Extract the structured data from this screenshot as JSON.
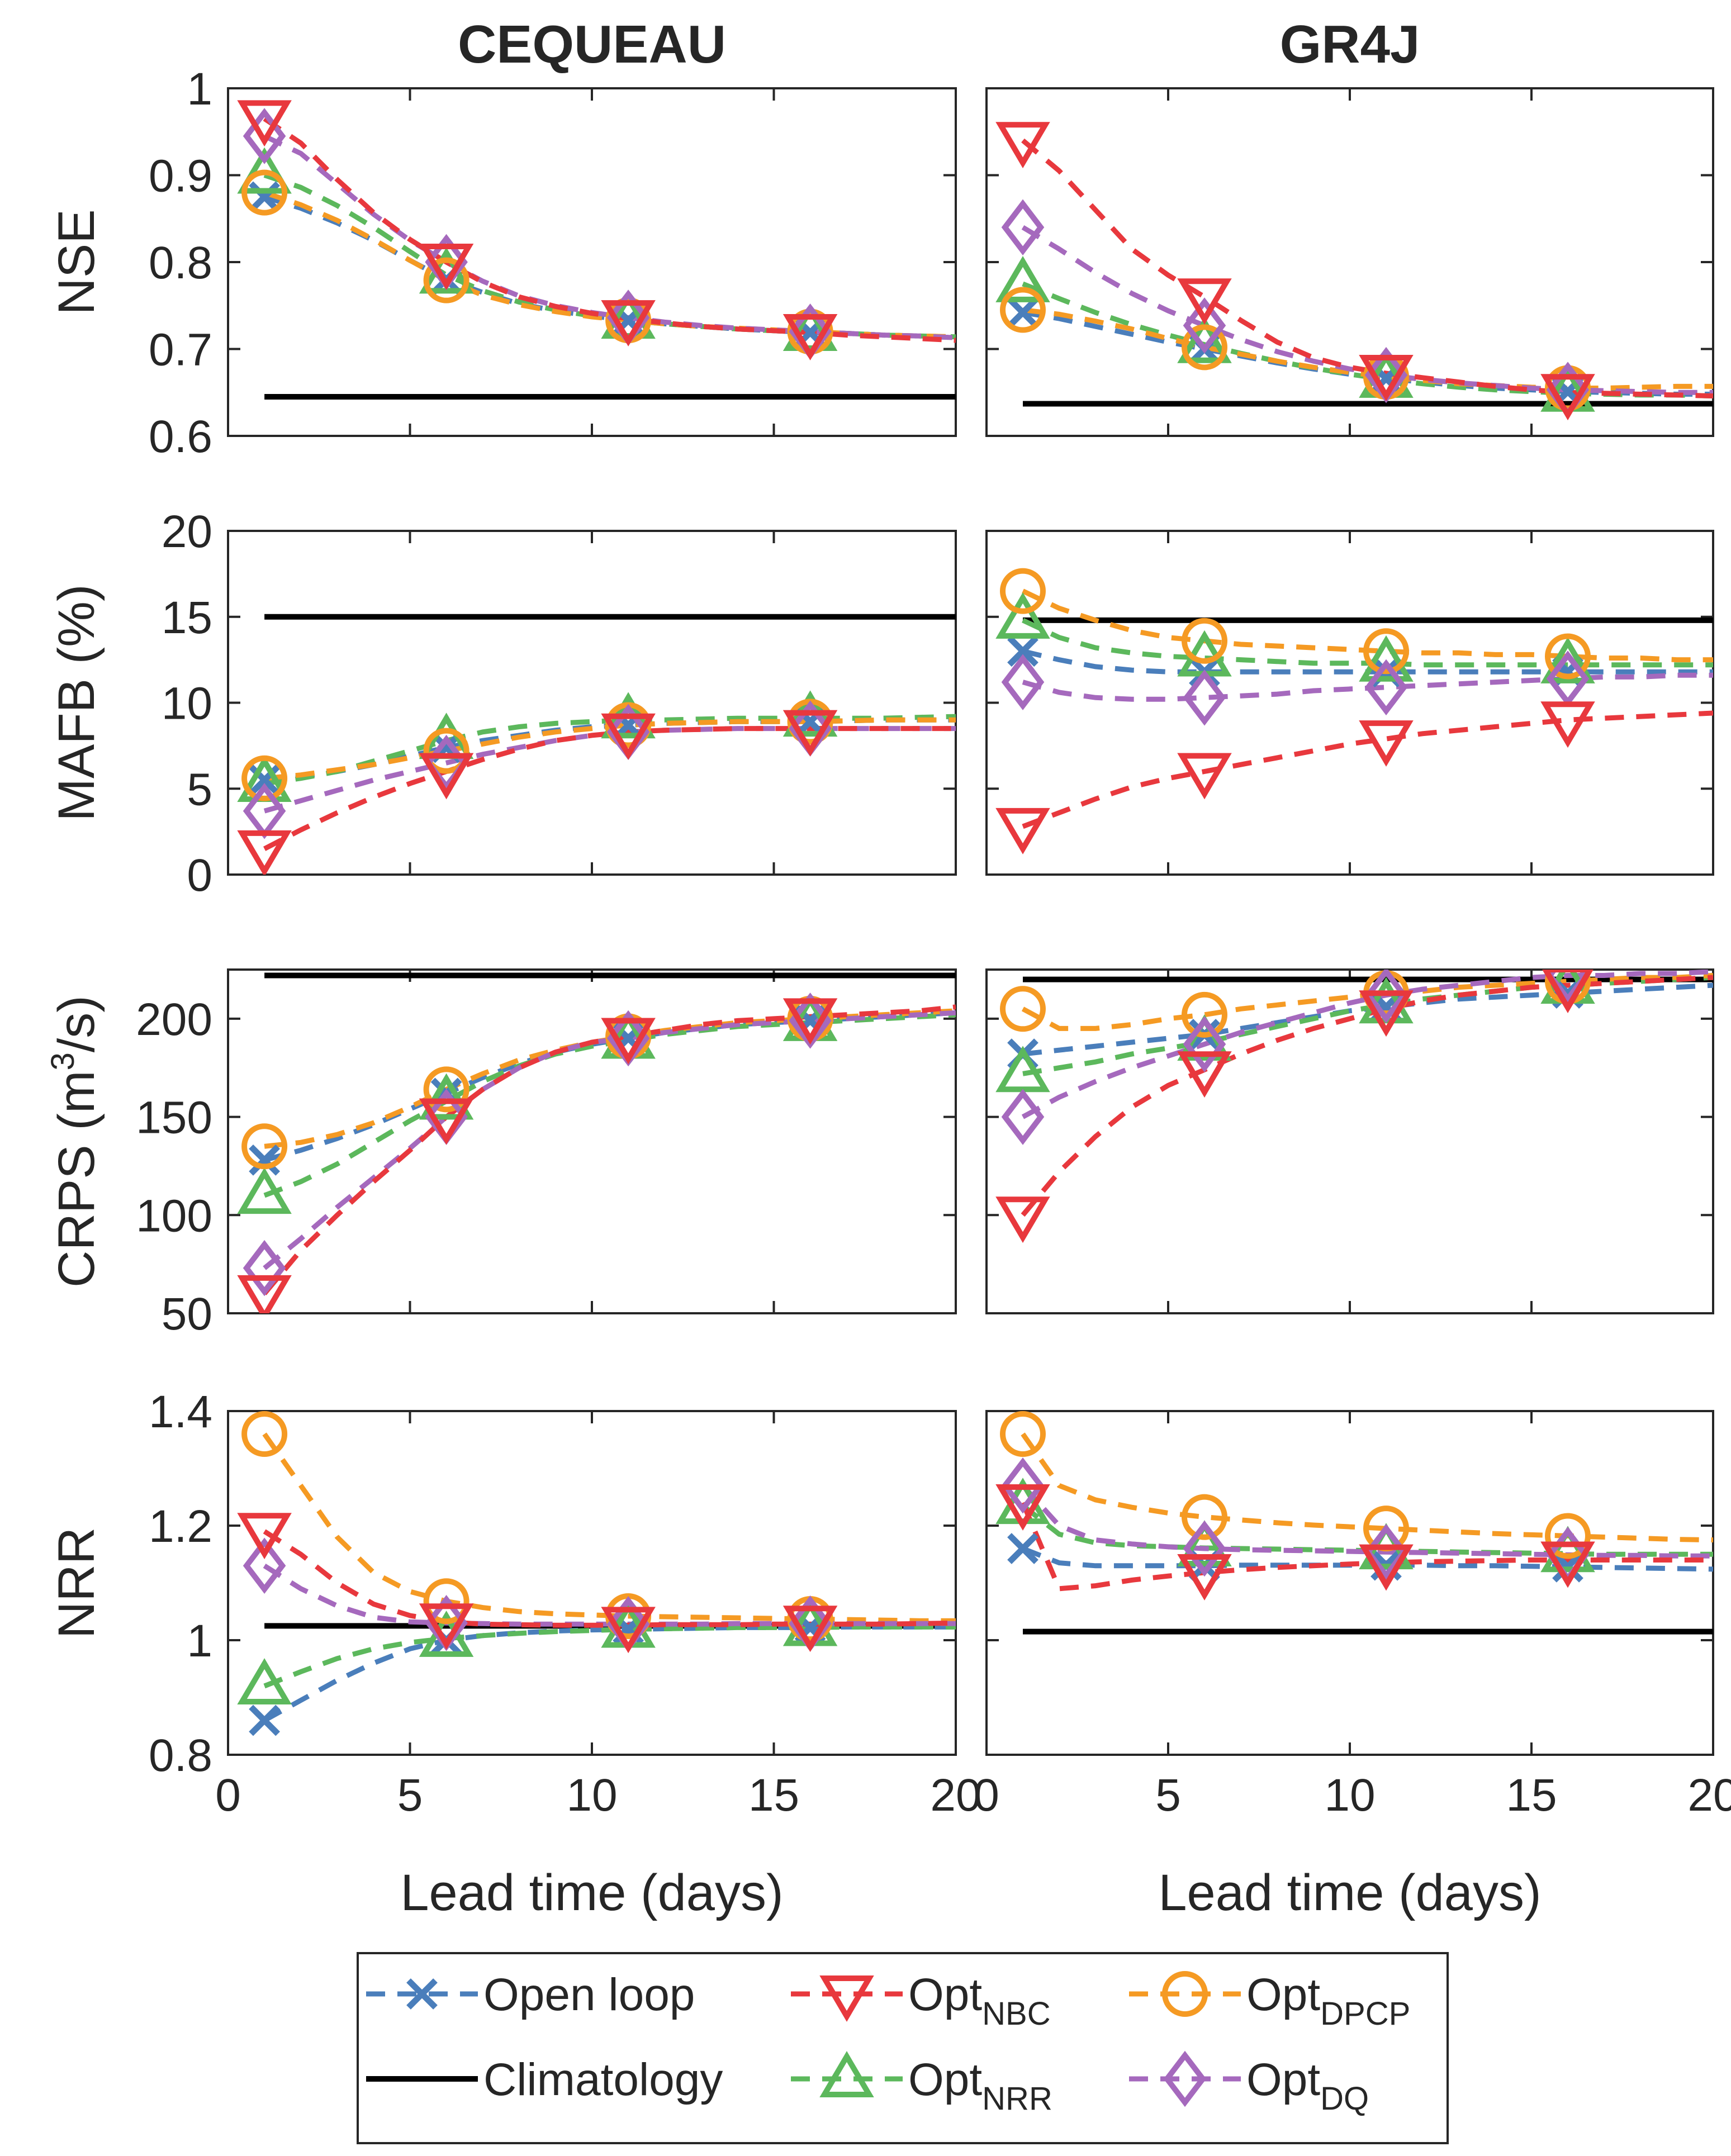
{
  "chart_data": {
    "type": "line",
    "x_label": "Lead time (days)",
    "x_ticks": [
      "0",
      "5",
      "10",
      "15",
      "20"
    ],
    "x_range": [
      0,
      20
    ],
    "columns": [
      "CEQUEAU",
      "GR4J"
    ],
    "metrics": [
      {
        "key": "nse",
        "ylabel": "NSE",
        "ylim": [
          0.6,
          1.0
        ],
        "yticks": [
          "0.6",
          "0.7",
          "0.8",
          "0.9",
          "1"
        ],
        "ytick_values": [
          0.6,
          0.7,
          0.8,
          0.9,
          1.0
        ]
      },
      {
        "key": "mafb",
        "ylabel": "MAFB (%)",
        "ylim": [
          0,
          20
        ],
        "yticks": [
          "0",
          "5",
          "10",
          "15",
          "20"
        ],
        "ytick_values": [
          0,
          5,
          10,
          15,
          20
        ]
      },
      {
        "key": "crps",
        "ylabel_main": "CRPS (m",
        "ylabel_sup": "3",
        "ylabel_end": "/s)",
        "ylim": [
          50,
          225
        ],
        "yticks": [
          "50",
          "100",
          "150",
          "200"
        ],
        "ytick_values": [
          50,
          100,
          150,
          200
        ]
      },
      {
        "key": "nrr",
        "ylabel": "NRR",
        "ylim": [
          0.8,
          1.4
        ],
        "yticks": [
          "0.8",
          "1",
          "1.2",
          "1.4"
        ],
        "ytick_values": [
          0.8,
          1.0,
          1.2,
          1.4
        ]
      }
    ],
    "marker_x": [
      1,
      6,
      11,
      16
    ],
    "x": [
      1,
      2,
      3,
      4,
      5,
      6,
      7,
      8,
      9,
      10,
      11,
      12,
      13,
      14,
      15,
      16,
      17,
      18,
      19,
      20
    ],
    "series_styles": [
      {
        "key": "open_loop",
        "name": "Open loop",
        "color": "#4a7ebb",
        "marker": "x"
      },
      {
        "key": "opt_nbc",
        "name": "Opt",
        "sub": "NBC",
        "color": "#e8383d",
        "marker": "triangle-down"
      },
      {
        "key": "opt_dpcp",
        "name": "Opt",
        "sub": "DPCP",
        "color": "#f59a23",
        "marker": "circle"
      },
      {
        "key": "climatology",
        "name": "Climatology",
        "color": "#000000",
        "marker": "none"
      },
      {
        "key": "opt_nrr",
        "name": "Opt",
        "sub": "NRR",
        "color": "#5cb85c",
        "marker": "triangle-up"
      },
      {
        "key": "opt_dq",
        "name": "Opt",
        "sub": "DQ",
        "color": "#a569bd",
        "marker": "diamond"
      }
    ],
    "data": {
      "CEQUEAU": {
        "nse": {
          "climatology": 0.645,
          "open_loop": [
            0.875,
            0.862,
            0.845,
            0.825,
            0.802,
            0.78,
            0.765,
            0.752,
            0.744,
            0.738,
            0.733,
            0.729,
            0.726,
            0.723,
            0.721,
            0.719,
            0.718,
            0.716,
            0.715,
            0.713
          ],
          "opt_nbc": [
            0.965,
            0.937,
            0.895,
            0.857,
            0.826,
            0.8,
            0.777,
            0.76,
            0.749,
            0.741,
            0.735,
            0.73,
            0.726,
            0.723,
            0.721,
            0.719,
            0.716,
            0.714,
            0.712,
            0.71
          ],
          "opt_dpcp": [
            0.88,
            0.866,
            0.848,
            0.826,
            0.802,
            0.779,
            0.762,
            0.751,
            0.743,
            0.737,
            0.733,
            0.729,
            0.726,
            0.724,
            0.722,
            0.72,
            0.718,
            0.716,
            0.715,
            0.714
          ],
          "opt_nrr": [
            0.9,
            0.886,
            0.865,
            0.84,
            0.812,
            0.785,
            0.767,
            0.754,
            0.745,
            0.738,
            0.733,
            0.729,
            0.726,
            0.723,
            0.721,
            0.719,
            0.718,
            0.716,
            0.715,
            0.714
          ],
          "opt_dq": [
            0.945,
            0.925,
            0.89,
            0.855,
            0.825,
            0.8,
            0.778,
            0.761,
            0.75,
            0.742,
            0.736,
            0.731,
            0.727,
            0.724,
            0.722,
            0.72,
            0.718,
            0.716,
            0.715,
            0.713
          ]
        },
        "mafb": {
          "climatology": 15.0,
          "open_loop": [
            5.5,
            5.7,
            6.0,
            6.4,
            6.9,
            7.4,
            7.8,
            8.1,
            8.4,
            8.6,
            8.7,
            8.8,
            8.85,
            8.9,
            8.9,
            8.9,
            8.95,
            9.0,
            9.0,
            9.0
          ],
          "opt_nbc": [
            1.5,
            2.6,
            3.6,
            4.5,
            5.3,
            6.0,
            6.7,
            7.3,
            7.8,
            8.1,
            8.3,
            8.4,
            8.45,
            8.5,
            8.5,
            8.5,
            8.5,
            8.5,
            8.5,
            8.5
          ],
          "opt_dpcp": [
            5.6,
            5.8,
            6.1,
            6.4,
            6.8,
            7.2,
            7.6,
            8.0,
            8.3,
            8.5,
            8.7,
            8.8,
            8.85,
            8.9,
            8.9,
            8.9,
            8.95,
            9.0,
            9.0,
            9.0
          ],
          "opt_nrr": [
            5.3,
            5.6,
            6.0,
            6.6,
            7.2,
            7.8,
            8.3,
            8.6,
            8.8,
            8.9,
            9.0,
            9.0,
            9.05,
            9.1,
            9.1,
            9.1,
            9.1,
            9.1,
            9.15,
            9.2
          ],
          "opt_dq": [
            3.7,
            4.3,
            4.9,
            5.5,
            6.0,
            6.5,
            7.0,
            7.4,
            7.8,
            8.1,
            8.3,
            8.4,
            8.45,
            8.5,
            8.5,
            8.5,
            8.5,
            8.5,
            8.5,
            8.5
          ]
        },
        "crps": {
          "climatology": 222,
          "open_loop": [
            128,
            133,
            139,
            146,
            154,
            162,
            170,
            177,
            183,
            187,
            190,
            193,
            195,
            197,
            198,
            199,
            200,
            201,
            202,
            203
          ],
          "opt_nbc": [
            60,
            82,
            100,
            117,
            133,
            150,
            164,
            175,
            183,
            188,
            191,
            194,
            197,
            199,
            200,
            201,
            202,
            203,
            204,
            206
          ],
          "opt_dpcp": [
            135,
            137,
            141,
            147,
            155,
            164,
            172,
            179,
            184,
            188,
            191,
            194,
            196,
            198,
            199,
            200,
            201,
            202,
            203,
            204
          ],
          "opt_nrr": [
            110,
            117,
            126,
            137,
            148,
            158,
            168,
            176,
            182,
            186,
            189,
            192,
            194,
            196,
            197,
            198,
            199,
            200,
            201,
            202
          ],
          "opt_dq": [
            73,
            88,
            104,
            119,
            134,
            150,
            164,
            175,
            183,
            188,
            190,
            193,
            195,
            197,
            198,
            199,
            200,
            201,
            202,
            203
          ]
        },
        "nrr": {
          "climatology": 1.025,
          "open_loop": [
            0.86,
            0.895,
            0.93,
            0.96,
            0.985,
            1.0,
            1.008,
            1.013,
            1.016,
            1.018,
            1.019,
            1.02,
            1.021,
            1.022,
            1.022,
            1.022,
            1.023,
            1.023,
            1.023,
            1.023
          ],
          "opt_nbc": [
            1.19,
            1.15,
            1.1,
            1.063,
            1.043,
            1.032,
            1.028,
            1.027,
            1.026,
            1.026,
            1.026,
            1.027,
            1.027,
            1.027,
            1.028,
            1.028,
            1.028,
            1.028,
            1.029,
            1.03
          ],
          "opt_dpcp": [
            1.36,
            1.27,
            1.18,
            1.118,
            1.085,
            1.068,
            1.057,
            1.05,
            1.046,
            1.044,
            1.042,
            1.041,
            1.04,
            1.039,
            1.038,
            1.037,
            1.036,
            1.035,
            1.034,
            1.034
          ],
          "opt_nrr": [
            0.92,
            0.945,
            0.968,
            0.985,
            0.996,
            1.003,
            1.008,
            1.012,
            1.015,
            1.017,
            1.019,
            1.02,
            1.021,
            1.022,
            1.022,
            1.022,
            1.023,
            1.023,
            1.023,
            1.023
          ],
          "opt_dq": [
            1.13,
            1.09,
            1.06,
            1.04,
            1.032,
            1.03,
            1.029,
            1.028,
            1.028,
            1.028,
            1.028,
            1.028,
            1.028,
            1.029,
            1.029,
            1.029,
            1.029,
            1.029,
            1.029,
            1.029
          ]
        }
      },
      "GR4J": {
        "nse": {
          "climatology": 0.637,
          "open_loop": [
            0.742,
            0.735,
            0.726,
            0.717,
            0.708,
            0.7,
            0.692,
            0.684,
            0.677,
            0.671,
            0.666,
            0.662,
            0.658,
            0.655,
            0.653,
            0.651,
            0.65,
            0.649,
            0.648,
            0.648
          ],
          "opt_nbc": [
            0.94,
            0.905,
            0.86,
            0.815,
            0.785,
            0.76,
            0.733,
            0.708,
            0.69,
            0.679,
            0.672,
            0.667,
            0.662,
            0.657,
            0.653,
            0.65,
            0.649,
            0.648,
            0.647,
            0.646
          ],
          "opt_dpcp": [
            0.745,
            0.74,
            0.732,
            0.723,
            0.712,
            0.702,
            0.694,
            0.686,
            0.679,
            0.673,
            0.668,
            0.664,
            0.66,
            0.658,
            0.656,
            0.655,
            0.655,
            0.656,
            0.657,
            0.657
          ],
          "opt_nrr": [
            0.775,
            0.758,
            0.742,
            0.728,
            0.716,
            0.705,
            0.695,
            0.686,
            0.678,
            0.671,
            0.665,
            0.66,
            0.656,
            0.653,
            0.651,
            0.649,
            0.648,
            0.647,
            0.647,
            0.646
          ],
          "opt_dq": [
            0.84,
            0.815,
            0.788,
            0.764,
            0.744,
            0.727,
            0.711,
            0.697,
            0.686,
            0.677,
            0.67,
            0.665,
            0.661,
            0.658,
            0.655,
            0.653,
            0.652,
            0.651,
            0.65,
            0.65
          ]
        },
        "mafb": {
          "climatology": 14.8,
          "open_loop": [
            13.0,
            12.5,
            12.1,
            11.9,
            11.8,
            11.8,
            11.8,
            11.8,
            11.8,
            11.8,
            11.8,
            11.8,
            11.8,
            11.8,
            11.8,
            11.8,
            11.8,
            11.8,
            11.8,
            11.8
          ],
          "opt_nbc": [
            2.8,
            3.6,
            4.4,
            5.1,
            5.6,
            6.0,
            6.4,
            6.8,
            7.2,
            7.6,
            7.9,
            8.2,
            8.4,
            8.6,
            8.8,
            9.0,
            9.1,
            9.2,
            9.3,
            9.4
          ],
          "opt_dpcp": [
            16.5,
            15.5,
            14.8,
            14.2,
            13.8,
            13.6,
            13.4,
            13.3,
            13.2,
            13.1,
            13.0,
            12.9,
            12.9,
            12.8,
            12.8,
            12.7,
            12.6,
            12.6,
            12.5,
            12.5
          ],
          "opt_nrr": [
            14.8,
            13.8,
            13.2,
            12.9,
            12.7,
            12.6,
            12.5,
            12.4,
            12.3,
            12.3,
            12.3,
            12.2,
            12.2,
            12.2,
            12.2,
            12.2,
            12.2,
            12.2,
            12.2,
            12.2
          ],
          "opt_dq": [
            11.2,
            10.6,
            10.3,
            10.2,
            10.2,
            10.3,
            10.4,
            10.5,
            10.7,
            10.8,
            10.9,
            11.0,
            11.1,
            11.2,
            11.3,
            11.4,
            11.5,
            11.5,
            11.6,
            11.6
          ]
        },
        "crps": {
          "climatology": 220,
          "open_loop": [
            182,
            184,
            186,
            188,
            190,
            192,
            195,
            198,
            201,
            204,
            206,
            208,
            210,
            211,
            212,
            213,
            214,
            215,
            216,
            217
          ],
          "opt_nbc": [
            100,
            122,
            140,
            155,
            166,
            174,
            182,
            189,
            195,
            200,
            205,
            209,
            212,
            214,
            216,
            217,
            218,
            219,
            220,
            221
          ],
          "opt_dpcp": [
            205,
            195,
            195,
            197,
            200,
            202,
            205,
            207,
            209,
            211,
            213,
            214,
            216,
            217,
            218,
            219,
            220,
            221,
            221,
            222
          ],
          "opt_nrr": [
            172,
            175,
            178,
            182,
            185,
            188,
            192,
            196,
            200,
            204,
            207,
            210,
            212,
            214,
            216,
            217,
            218,
            219,
            220,
            221
          ],
          "opt_dq": [
            150,
            160,
            168,
            175,
            181,
            187,
            193,
            198,
            203,
            208,
            212,
            215,
            217,
            219,
            221,
            222,
            222,
            223,
            223,
            224
          ]
        },
        "nrr": {
          "climatology": 1.015,
          "open_loop": [
            1.16,
            1.135,
            1.13,
            1.13,
            1.13,
            1.13,
            1.131,
            1.131,
            1.131,
            1.131,
            1.131,
            1.131,
            1.13,
            1.13,
            1.129,
            1.128,
            1.127,
            1.126,
            1.125,
            1.124
          ],
          "opt_nbc": [
            1.24,
            1.09,
            1.095,
            1.105,
            1.112,
            1.118,
            1.123,
            1.127,
            1.13,
            1.133,
            1.135,
            1.137,
            1.138,
            1.139,
            1.14,
            1.14,
            1.14,
            1.14,
            1.14,
            1.14
          ],
          "opt_dpcp": [
            1.36,
            1.27,
            1.245,
            1.232,
            1.222,
            1.215,
            1.21,
            1.205,
            1.201,
            1.198,
            1.195,
            1.192,
            1.189,
            1.186,
            1.184,
            1.182,
            1.18,
            1.178,
            1.176,
            1.175
          ],
          "opt_nrr": [
            1.235,
            1.185,
            1.17,
            1.165,
            1.163,
            1.161,
            1.16,
            1.159,
            1.158,
            1.157,
            1.156,
            1.155,
            1.154,
            1.153,
            1.152,
            1.151,
            1.15,
            1.15,
            1.15,
            1.15
          ],
          "opt_dq": [
            1.27,
            1.2,
            1.175,
            1.168,
            1.163,
            1.16,
            1.158,
            1.157,
            1.156,
            1.155,
            1.154,
            1.153,
            1.152,
            1.151,
            1.15,
            1.149,
            1.148,
            1.148,
            1.147,
            1.147
          ]
        }
      }
    },
    "legend": {
      "position": "bottom-center",
      "entries": [
        {
          "key": "open_loop",
          "label": "Open loop"
        },
        {
          "key": "opt_nbc",
          "label": "Opt",
          "sub": "NBC"
        },
        {
          "key": "opt_dpcp",
          "label": "Opt",
          "sub": "DPCP"
        },
        {
          "key": "climatology",
          "label": "Climatology"
        },
        {
          "key": "opt_nrr",
          "label": "Opt",
          "sub": "NRR"
        },
        {
          "key": "opt_dq",
          "label": "Opt",
          "sub": "DQ"
        }
      ]
    }
  }
}
